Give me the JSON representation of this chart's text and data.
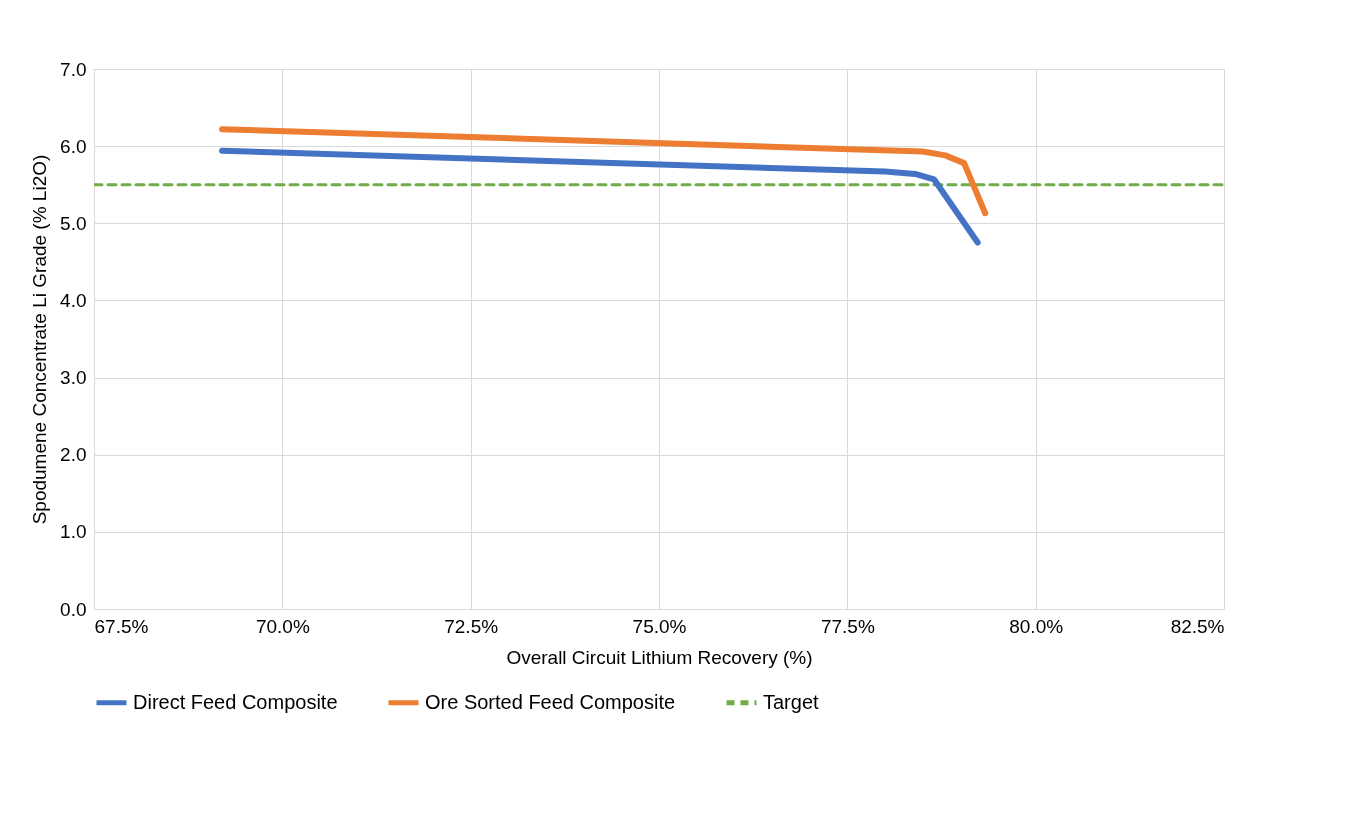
{
  "chart_data": {
    "type": "line",
    "xlabel": "Overall Circuit Lithium Recovery (%)",
    "ylabel": "Spodumene Concentrate Li Grade (% Li2O)",
    "series": [
      {
        "name": "Direct Feed Composite",
        "color": "#4472c4",
        "x": [
          69.2,
          78.0,
          78.4,
          78.65,
          79.23
        ],
        "values": [
          5.94,
          5.67,
          5.64,
          5.57,
          4.75
        ]
      },
      {
        "name": "Ore Sorted Feed Composite",
        "color": "#ed7d31",
        "x": [
          69.2,
          78.5,
          78.8,
          79.05,
          79.33
        ],
        "values": [
          6.22,
          5.93,
          5.88,
          5.78,
          5.13
        ]
      }
    ],
    "ref_lines": [
      {
        "axis": "y",
        "value": 5.5,
        "label": "Target",
        "color": "#70ad47",
        "line_style": "dashed"
      }
    ],
    "xlim": [
      67.5,
      82.5
    ],
    "xticks": [
      {
        "value": 67.5,
        "label": "67.5%"
      },
      {
        "value": 70,
        "label": "70.0%"
      },
      {
        "value": 72.5,
        "label": "72.5%"
      },
      {
        "value": 75,
        "label": "75.0%"
      },
      {
        "value": 77.5,
        "label": "77.5%"
      },
      {
        "value": 80,
        "label": "80.0%"
      },
      {
        "value": 82.5,
        "label": "82.5%"
      }
    ],
    "ylim": [
      0,
      7
    ],
    "yticks": [
      {
        "value": 0,
        "label": "0.0"
      },
      {
        "value": 1,
        "label": "1.0"
      },
      {
        "value": 2,
        "label": "2.0"
      },
      {
        "value": 3,
        "label": "3.0"
      },
      {
        "value": 4,
        "label": "4.0"
      },
      {
        "value": 5,
        "label": "5.0"
      },
      {
        "value": 6,
        "label": "6.0"
      },
      {
        "value": 7,
        "label": "7.0"
      }
    ],
    "grid": true,
    "legend": "bottom",
    "line_style": "solid"
  }
}
